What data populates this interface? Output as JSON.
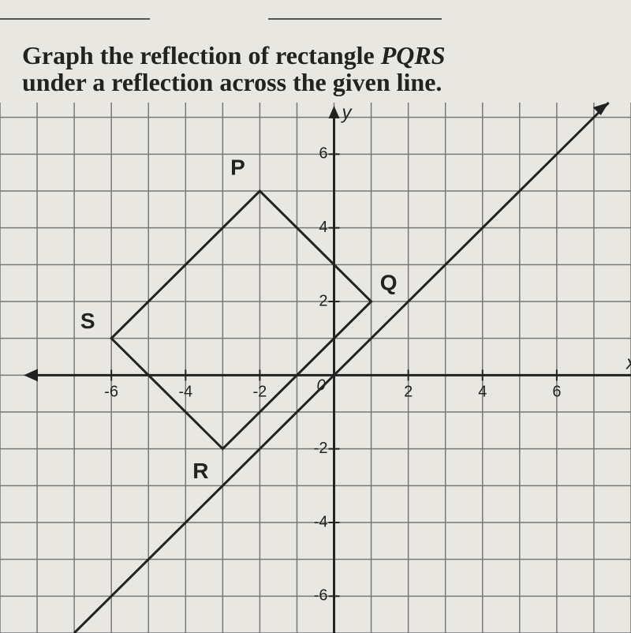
{
  "question": {
    "line1": "Graph the reflection of rectangle",
    "figure_name": "PQRS",
    "line2": "under a reflection across the given line."
  },
  "graph": {
    "xlim": [
      -9,
      8
    ],
    "ylim": [
      -7,
      7.4
    ],
    "x_label": "x",
    "y_label": "y",
    "origin_label": "0",
    "xticks": [
      -6,
      -4,
      -2,
      2,
      4,
      6
    ],
    "yticks": [
      -6,
      -4,
      -2,
      2,
      4,
      6
    ],
    "vertices": [
      {
        "label": "P",
        "x": -2,
        "y": 5
      },
      {
        "label": "Q",
        "x": 1,
        "y": 2
      },
      {
        "label": "R",
        "x": -3,
        "y": -2
      },
      {
        "label": "S",
        "x": -6,
        "y": 1
      }
    ],
    "line": {
      "x": [
        -7,
        7.4
      ],
      "y": [
        -7,
        7.4
      ]
    }
  }
}
